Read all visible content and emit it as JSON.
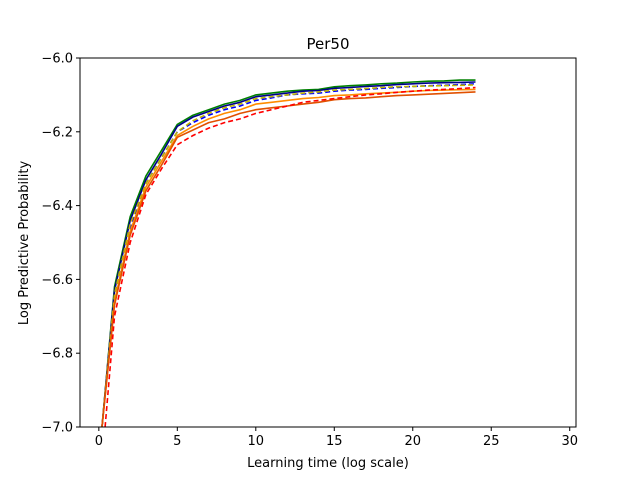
{
  "chart_data": {
    "type": "line",
    "title": "Per50",
    "xlabel": "Learning time (log scale)",
    "ylabel": "Log Predictive Probability",
    "xlim": [
      -1.2,
      30.4
    ],
    "ylim": [
      -7.0,
      -6.0
    ],
    "xticks": [
      0,
      5,
      10,
      15,
      20,
      25,
      30
    ],
    "xtick_labels": [
      "0",
      "5",
      "10",
      "15",
      "20",
      "25",
      "30"
    ],
    "yticks": [
      -7.0,
      -6.8,
      -6.6,
      -6.4,
      -6.2,
      -6.0
    ],
    "ytick_labels": [
      "−7.0",
      "−6.8",
      "−6.6",
      "−6.4",
      "−6.2",
      "−6.0"
    ],
    "grid": false,
    "series": [
      {
        "color": "#008000",
        "style": "solid",
        "x": [
          0.2,
          1,
          2,
          3,
          4,
          5,
          6,
          7,
          8,
          9,
          10,
          11,
          12,
          13,
          14,
          15,
          16,
          17,
          18,
          19,
          20,
          21,
          22,
          23,
          24
        ],
        "y": [
          -7.0,
          -6.62,
          -6.43,
          -6.32,
          -6.25,
          -6.18,
          -6.155,
          -6.14,
          -6.125,
          -6.115,
          -6.1,
          -6.095,
          -6.09,
          -6.087,
          -6.085,
          -6.078,
          -6.075,
          -6.073,
          -6.07,
          -6.068,
          -6.065,
          -6.063,
          -6.062,
          -6.06,
          -6.06
        ]
      },
      {
        "color": "#00008b",
        "style": "solid",
        "x": [
          0.2,
          1,
          2,
          3,
          4,
          5,
          6,
          7,
          8,
          9,
          10,
          11,
          12,
          13,
          14,
          15,
          16,
          17,
          18,
          19,
          20,
          21,
          22,
          23,
          24
        ],
        "y": [
          -7.0,
          -6.63,
          -6.44,
          -6.33,
          -6.26,
          -6.185,
          -6.16,
          -6.145,
          -6.13,
          -6.12,
          -6.105,
          -6.1,
          -6.095,
          -6.09,
          -6.088,
          -6.082,
          -6.08,
          -6.077,
          -6.075,
          -6.072,
          -6.07,
          -6.068,
          -6.067,
          -6.066,
          -6.065
        ]
      },
      {
        "color": "#0000ff",
        "style": "dashed",
        "x": [
          0.2,
          1,
          2,
          3,
          4,
          5,
          6,
          7,
          8,
          9,
          10,
          11,
          12,
          13,
          14,
          15,
          16,
          17,
          18,
          19,
          20,
          21,
          22,
          23,
          24
        ],
        "y": [
          -7.0,
          -6.65,
          -6.46,
          -6.34,
          -6.27,
          -6.2,
          -6.175,
          -6.155,
          -6.14,
          -6.13,
          -6.115,
          -6.108,
          -6.1,
          -6.097,
          -6.095,
          -6.09,
          -6.087,
          -6.085,
          -6.082,
          -6.08,
          -6.077,
          -6.075,
          -6.074,
          -6.072,
          -6.07
        ]
      },
      {
        "color": "#bdb600",
        "style": "dashed",
        "x": [
          0.2,
          1,
          2,
          3,
          4,
          5,
          6,
          7,
          8,
          9,
          10,
          11,
          12,
          13,
          14,
          15,
          16,
          17,
          18,
          19,
          20,
          21,
          22,
          23,
          24
        ],
        "y": [
          -7.0,
          -6.64,
          -6.45,
          -6.34,
          -6.27,
          -6.2,
          -6.17,
          -6.15,
          -6.135,
          -6.125,
          -6.11,
          -6.105,
          -6.1,
          -6.095,
          -6.092,
          -6.087,
          -6.085,
          -6.083,
          -6.08,
          -6.078,
          -6.077,
          -6.076,
          -6.075,
          -6.074,
          -6.073
        ]
      },
      {
        "color": "#ff8c00",
        "style": "solid",
        "x": [
          0.2,
          1,
          2,
          3,
          4,
          5,
          6,
          7,
          8,
          9,
          10,
          11,
          12,
          13,
          14,
          15,
          16,
          17,
          18,
          19,
          20,
          21,
          22,
          23,
          24
        ],
        "y": [
          -7.0,
          -6.66,
          -6.47,
          -6.35,
          -6.28,
          -6.21,
          -6.185,
          -6.165,
          -6.15,
          -6.14,
          -6.125,
          -6.12,
          -6.115,
          -6.11,
          -6.107,
          -6.102,
          -6.1,
          -6.097,
          -6.095,
          -6.093,
          -6.09,
          -6.088,
          -6.087,
          -6.086,
          -6.085
        ]
      },
      {
        "color": "#e05000",
        "style": "solid",
        "x": [
          0.2,
          1,
          2,
          3,
          4,
          5,
          6,
          7,
          8,
          9,
          10,
          11,
          12,
          13,
          14,
          15,
          16,
          17,
          18,
          19,
          20,
          21,
          22,
          23,
          24
        ],
        "y": [
          -7.0,
          -6.67,
          -6.48,
          -6.36,
          -6.29,
          -6.215,
          -6.195,
          -6.175,
          -6.165,
          -6.15,
          -6.14,
          -6.135,
          -6.13,
          -6.125,
          -6.12,
          -6.113,
          -6.11,
          -6.108,
          -6.105,
          -6.102,
          -6.1,
          -6.098,
          -6.096,
          -6.094,
          -6.092
        ]
      },
      {
        "color": "#ff0000",
        "style": "dashed",
        "x": [
          0.4,
          1,
          2,
          3,
          4,
          5,
          6,
          7,
          8,
          9,
          10,
          11,
          12,
          13,
          14,
          15,
          16,
          17,
          18,
          19,
          20,
          21,
          22,
          23,
          24
        ],
        "y": [
          -7.0,
          -6.7,
          -6.5,
          -6.37,
          -6.3,
          -6.235,
          -6.21,
          -6.19,
          -6.175,
          -6.165,
          -6.15,
          -6.14,
          -6.13,
          -6.12,
          -6.115,
          -6.11,
          -6.105,
          -6.1,
          -6.097,
          -6.093,
          -6.09,
          -6.087,
          -6.085,
          -6.083,
          -6.08
        ]
      }
    ]
  }
}
